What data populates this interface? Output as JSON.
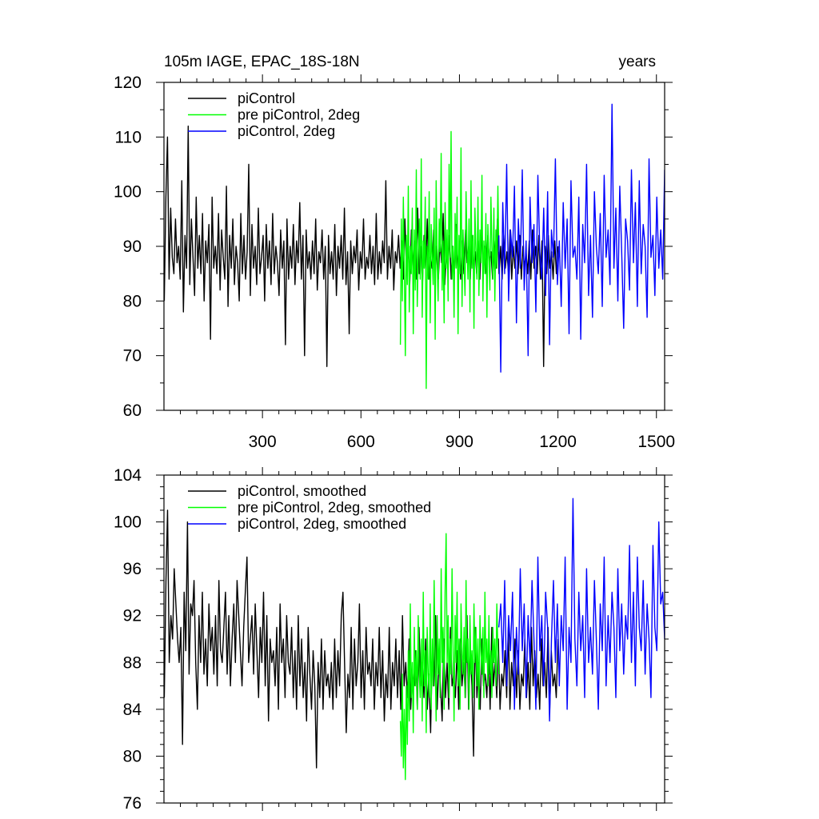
{
  "figure": {
    "title_left": "105m IAGE, EPAC_18S-18N",
    "title_right": "years"
  },
  "colors": {
    "piControl": "#000000",
    "pre_piControl_2deg": "#00ff00",
    "piControl_2deg": "#0000ff",
    "axis": "#000000",
    "background": "#ffffff"
  },
  "chart_data": [
    {
      "type": "line",
      "title": "105m IAGE, EPAC_18S-18N",
      "xlabel": "years",
      "ylabel": "",
      "xlim": [
        0,
        1525
      ],
      "ylim": [
        60,
        120
      ],
      "x_ticks": [
        300,
        600,
        900,
        1200,
        1500
      ],
      "x_tick_labels": [
        "300",
        "600",
        "900",
        "1200",
        "1500"
      ],
      "y_ticks": [
        60,
        70,
        80,
        90,
        100,
        110,
        120
      ],
      "y_tick_labels": [
        "60",
        "70",
        "80",
        "90",
        "100",
        "110",
        "120"
      ],
      "legend_position": "top-left",
      "series": [
        {
          "name": "piControl",
          "color_key": "piControl",
          "x_range": [
            1,
            1200
          ],
          "sample_step": 5,
          "approx_mean": 88,
          "values": [
            80,
            99,
            110,
            84,
            97,
            88,
            85,
            95,
            87,
            90,
            84,
            102,
            78,
            92,
            86,
            112,
            83,
            95,
            88,
            81,
            99,
            86,
            92,
            85,
            96,
            80,
            91,
            87,
            94,
            73,
            99,
            86,
            90,
            85,
            96,
            82,
            93,
            88,
            84,
            101,
            79,
            92,
            86,
            95,
            83,
            90,
            87,
            80,
            96,
            85,
            92,
            84,
            89,
            105,
            81,
            94,
            86,
            90,
            83,
            97,
            85,
            88,
            92,
            80,
            94,
            86,
            91,
            83,
            96,
            85,
            90,
            87,
            81,
            93,
            86,
            91,
            72,
            95,
            84,
            90,
            86,
            94,
            83,
            91,
            87,
            98,
            84,
            92,
            70,
            93,
            86,
            89,
            84,
            91,
            85,
            95,
            82,
            89,
            87,
            93,
            84,
            90,
            68,
            92,
            85,
            89,
            84,
            94,
            81,
            90,
            86,
            92,
            84,
            97,
            83,
            89,
            74,
            91,
            85,
            90,
            87,
            93,
            82,
            89,
            86,
            95,
            84,
            88,
            86,
            92,
            85,
            90,
            83,
            96,
            84,
            89,
            85,
            91,
            87,
            102,
            84,
            90,
            86,
            93,
            82,
            89,
            87,
            92,
            86,
            91,
            84,
            95,
            85,
            90,
            83,
            93,
            86,
            91,
            84,
            97,
            85,
            90,
            83,
            92,
            86,
            95,
            84,
            88,
            86,
            93,
            85,
            90,
            84,
            91,
            87,
            96,
            83,
            89,
            86,
            92,
            84,
            90,
            85,
            94,
            86,
            89,
            84,
            91,
            85,
            93,
            87,
            90,
            84,
            92,
            86,
            89,
            85,
            91,
            84,
            93,
            86,
            90,
            85,
            92,
            87,
            89,
            84,
            91,
            86,
            95,
            85,
            90,
            84,
            92,
            86,
            89,
            85,
            93,
            84,
            90,
            86,
            91,
            85,
            92,
            84,
            90,
            86,
            89,
            85,
            91,
            84,
            93,
            86,
            90,
            85,
            92,
            84,
            91,
            68,
            90,
            85,
            92,
            86,
            89,
            84,
            91,
            85,
            90
          ]
        },
        {
          "name": "pre piControl, 2deg",
          "color_key": "pre_piControl_2deg",
          "x_range": [
            720,
            1020
          ],
          "sample_step": 3,
          "approx_mean": 88,
          "values": [
            72,
            95,
            80,
            99,
            86,
            70,
            92,
            83,
            101,
            78,
            90,
            85,
            97,
            74,
            93,
            82,
            104,
            79,
            88,
            95,
            84,
            106,
            77,
            91,
            86,
            99,
            64,
            90,
            84,
            100,
            76,
            94,
            88,
            83,
            97,
            73,
            102,
            87,
            80,
            95,
            89,
            107,
            82,
            91,
            76,
            98,
            86,
            93,
            80,
            105,
            88,
            111,
            84,
            90,
            77,
            96,
            86,
            99,
            74,
            92,
            85,
            108,
            79,
            93,
            87,
            81,
            100,
            90,
            84,
            95,
            78,
            102,
            86,
            92,
            75,
            97,
            89,
            84,
            99,
            81,
            93,
            87,
            103,
            80,
            91,
            85,
            96,
            77,
            94,
            88,
            82,
            99,
            90,
            84,
            97,
            80,
            93,
            86,
            101,
            89
          ]
        },
        {
          "name": "piControl, 2deg",
          "color_key": "piControl_2deg",
          "x_range": [
            1020,
            1525
          ],
          "sample_step": 5,
          "approx_mean": 91,
          "values": [
            92,
            67,
            98,
            85,
            105,
            80,
            93,
            88,
            101,
            76,
            95,
            86,
            104,
            82,
            91,
            70,
            99,
            87,
            94,
            78,
            103,
            89,
            84,
            97,
            81,
            100,
            72,
            93,
            88,
            106,
            83,
            91,
            79,
            98,
            86,
            95,
            74,
            102,
            88,
            90,
            84,
            99,
            73,
            94,
            87,
            105,
            81,
            92,
            77,
            100,
            90,
            85,
            96,
            79,
            103,
            88,
            93,
            83,
            116,
            86,
            97,
            80,
            101,
            89,
            75,
            95,
            91,
            82,
            104,
            87,
            98,
            79,
            102,
            85,
            94,
            90,
            77,
            106,
            88,
            92,
            81,
            99,
            86,
            93,
            84,
            104
          ]
        }
      ]
    },
    {
      "type": "line",
      "title": "",
      "xlabel": "",
      "ylabel": "",
      "xlim": [
        0,
        1525
      ],
      "ylim": [
        76,
        104
      ],
      "x_ticks": [
        300,
        600,
        900,
        1200,
        1500
      ],
      "x_tick_labels": [],
      "y_ticks": [
        76,
        80,
        84,
        88,
        92,
        96,
        100,
        104
      ],
      "y_tick_labels": [
        "76",
        "80",
        "84",
        "88",
        "92",
        "96",
        "100",
        "104"
      ],
      "legend_position": "top-left",
      "series": [
        {
          "name": "piControl, smoothed",
          "color_key": "piControl",
          "x_range": [
            1,
            1200
          ],
          "sample_step": 5,
          "approx_mean": 88,
          "values": [
            85,
            95,
            101,
            88,
            92,
            90,
            96,
            93,
            90,
            88,
            91,
            81,
            94,
            89,
            100,
            87,
            93,
            92,
            95,
            88,
            84,
            92,
            88,
            94,
            87,
            90,
            86,
            93,
            89,
            91,
            87,
            92,
            86,
            95,
            89,
            88,
            91,
            94,
            87,
            92,
            86,
            90,
            93,
            88,
            95,
            92,
            89,
            86,
            91,
            94,
            97,
            88,
            90,
            92,
            87,
            93,
            89,
            85,
            91,
            88,
            94,
            86,
            92,
            83,
            90,
            88,
            89,
            86,
            91,
            84,
            93,
            88,
            90,
            85,
            92,
            88,
            87,
            91,
            85,
            89,
            84,
            92,
            86,
            90,
            85,
            88,
            83,
            91,
            87,
            84,
            89,
            86,
            79,
            88,
            85,
            90,
            84,
            89,
            86,
            87,
            85,
            88,
            84,
            90,
            85,
            89,
            86,
            92,
            94,
            88,
            82,
            87,
            85,
            91,
            84,
            90,
            86,
            88,
            93,
            85,
            89,
            84,
            91,
            87,
            88,
            86,
            90,
            84,
            88,
            86,
            91,
            85,
            89,
            83,
            87,
            85,
            91,
            84,
            88,
            86,
            90,
            85,
            89,
            84,
            92,
            86,
            88,
            85,
            90,
            84,
            87,
            86,
            89,
            84,
            91,
            86,
            88,
            85,
            90,
            84,
            87,
            82,
            89,
            86,
            92,
            84,
            88,
            86,
            83,
            90,
            85,
            88,
            84,
            91,
            86,
            87,
            85,
            89,
            84,
            90,
            86,
            88,
            85,
            92,
            84,
            89,
            86,
            80,
            91,
            85,
            88,
            84,
            90,
            86,
            87,
            85,
            89,
            84,
            91,
            86,
            88,
            85,
            90,
            84,
            87,
            86,
            89,
            85,
            91,
            84,
            88,
            86,
            90,
            85,
            89,
            84,
            87,
            86,
            90,
            85,
            88,
            84,
            91,
            86,
            89,
            85,
            87,
            84,
            90,
            86,
            88,
            85,
            91,
            84,
            89,
            86,
            87,
            85,
            90
          ]
        },
        {
          "name": "pre piControl, 2deg, smoothed",
          "color_key": "pre_piControl_2deg",
          "x_range": [
            720,
            1020
          ],
          "sample_step": 3,
          "approx_mean": 88,
          "values": [
            83,
            80,
            87,
            79,
            84,
            78,
            86,
            81,
            89,
            83,
            93,
            85,
            88,
            82,
            91,
            86,
            89,
            84,
            92,
            87,
            85,
            90,
            83,
            94,
            86,
            89,
            82,
            91,
            87,
            85,
            93,
            84,
            90,
            86,
            95,
            88,
            83,
            92,
            87,
            90,
            85,
            96,
            88,
            91,
            84,
            94,
            99,
            88,
            92,
            85,
            90,
            87,
            96,
            89,
            83,
            92,
            88,
            94,
            86,
            90,
            84,
            93,
            89,
            87,
            91,
            85,
            95,
            88,
            90,
            84,
            92,
            87,
            89,
            85,
            93,
            88,
            91,
            86,
            90,
            84,
            92,
            89,
            87,
            91,
            85,
            94,
            88,
            90,
            86,
            92,
            87,
            89,
            85,
            91,
            88,
            90,
            86,
            93,
            89,
            87
          ]
        },
        {
          "name": "piControl, 2deg, smoothed",
          "color_key": "piControl_2deg",
          "x_range": [
            1020,
            1525
          ],
          "sample_step": 5,
          "approx_mean": 91,
          "values": [
            91,
            93,
            88,
            95,
            86,
            92,
            89,
            94,
            84,
            91,
            87,
            96,
            89,
            93,
            85,
            92,
            88,
            95,
            90,
            84,
            97,
            89,
            92,
            86,
            94,
            91,
            83,
            90,
            95,
            88,
            93,
            86,
            92,
            89,
            97,
            84,
            91,
            88,
            102,
            90,
            86,
            94,
            89,
            92,
            85,
            96,
            88,
            91,
            87,
            95,
            90,
            84,
            93,
            89,
            97,
            86,
            92,
            88,
            94,
            91,
            85,
            96,
            89,
            93,
            87,
            92,
            90,
            98,
            88,
            94,
            86,
            97,
            91,
            89,
            95,
            87,
            93,
            90,
            85,
            98,
            91,
            89,
            100,
            93,
            94,
            90
          ]
        }
      ]
    }
  ]
}
